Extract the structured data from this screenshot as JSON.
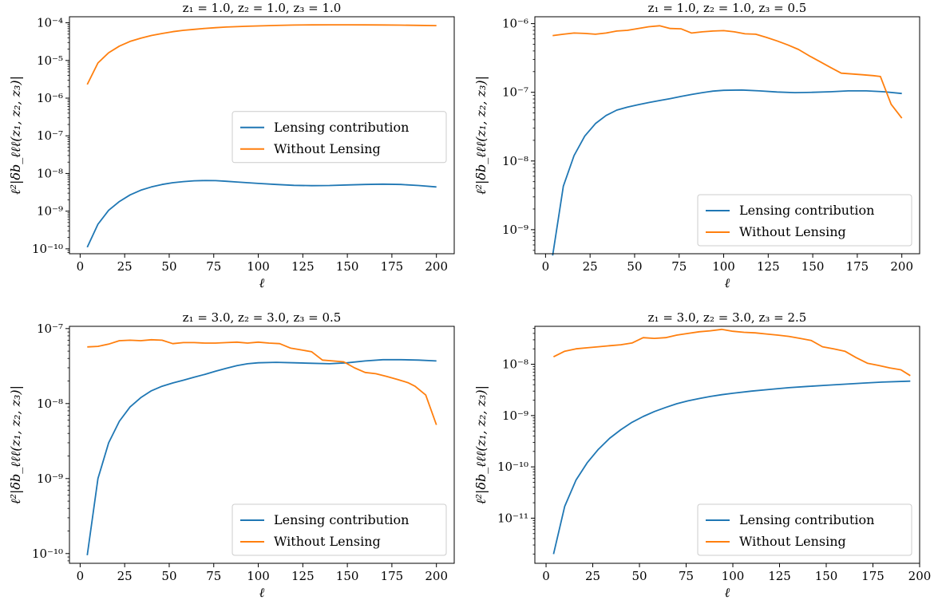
{
  "colors": {
    "lensing": "#1f77b4",
    "without": "#ff7f0e"
  },
  "chart_data": [
    {
      "type": "line",
      "title": "z₁ = 1.0, z₂ = 1.0, z₃ = 1.0",
      "xlabel": "ℓ",
      "ylabel": "ℓ²|δb_ℓℓℓ(z₁, z₂, z₃)|",
      "yscale": "log",
      "xlim": [
        -6,
        210
      ],
      "ylim_exp": [
        -10.13,
        -3.84
      ],
      "xticks": [
        0,
        25,
        50,
        75,
        100,
        125,
        150,
        175,
        200
      ],
      "yticks_exp": [
        -10,
        -9,
        -8,
        -7,
        -6,
        -5,
        -4
      ],
      "legend_position": "center-right",
      "series": [
        {
          "name": "Lensing contribution",
          "color_key": "lensing",
          "x": [
            4,
            10,
            16,
            22,
            28,
            34,
            40,
            46,
            52,
            58,
            64,
            70,
            76,
            82,
            88,
            94,
            100,
            110,
            120,
            130,
            140,
            150,
            160,
            170,
            180,
            190,
            200
          ],
          "y": [
            1.1e-10,
            4.5e-10,
            1.05e-09,
            1.8e-09,
            2.7e-09,
            3.6e-09,
            4.4e-09,
            5.1e-09,
            5.7e-09,
            6.1e-09,
            6.4e-09,
            6.5e-09,
            6.45e-09,
            6.2e-09,
            5.95e-09,
            5.7e-09,
            5.45e-09,
            5.1e-09,
            4.85e-09,
            4.75e-09,
            4.8e-09,
            4.95e-09,
            5.1e-09,
            5.2e-09,
            5.1e-09,
            4.8e-09,
            4.4e-09
          ]
        },
        {
          "name": "Without Lensing",
          "color_key": "without",
          "x": [
            4,
            10,
            16,
            22,
            28,
            34,
            40,
            46,
            52,
            58,
            64,
            70,
            76,
            82,
            88,
            94,
            100,
            110,
            120,
            130,
            140,
            150,
            160,
            170,
            180,
            190,
            200
          ],
          "y": [
            2.3e-06,
            8.6e-06,
            1.6e-05,
            2.4e-05,
            3.2e-05,
            3.9e-05,
            4.6e-05,
            5.2e-05,
            5.8e-05,
            6.3e-05,
            6.7e-05,
            7.1e-05,
            7.4e-05,
            7.7e-05,
            7.9e-05,
            8.1e-05,
            8.25e-05,
            8.5e-05,
            8.7e-05,
            8.8e-05,
            8.85e-05,
            8.85e-05,
            8.8e-05,
            8.75e-05,
            8.65e-05,
            8.55e-05,
            8.4e-05
          ]
        }
      ]
    },
    {
      "type": "line",
      "title": "z₁ = 1.0, z₂ = 1.0, z₃ = 0.5",
      "xlabel": "ℓ",
      "ylabel": "ℓ²|δb_ℓℓℓ(z₁, z₂, z₃)|",
      "yscale": "log",
      "xlim": [
        -6,
        210
      ],
      "ylim_exp": [
        -9.35,
        -5.9
      ],
      "xticks": [
        0,
        25,
        50,
        75,
        100,
        125,
        150,
        175,
        200
      ],
      "yticks_exp": [
        -9,
        -8,
        -7,
        -6
      ],
      "legend_position": "lower-right",
      "series": [
        {
          "name": "Lensing contribution",
          "color_key": "lensing",
          "x": [
            4,
            10,
            16,
            22,
            28,
            34,
            40,
            46,
            52,
            58,
            64,
            70,
            76,
            82,
            88,
            94,
            100,
            110,
            120,
            130,
            140,
            150,
            160,
            170,
            180,
            190,
            200
          ],
          "y": [
            4.2e-10,
            4.3e-09,
            1.2e-08,
            2.3e-08,
            3.5e-08,
            4.6e-08,
            5.5e-08,
            6.1e-08,
            6.6e-08,
            7.1e-08,
            7.6e-08,
            8.1e-08,
            8.7e-08,
            9.3e-08,
            9.9e-08,
            1.04e-07,
            1.07e-07,
            1.08e-07,
            1.05e-07,
            1.01e-07,
            9.9e-08,
            1e-07,
            1.02e-07,
            1.05e-07,
            1.05e-07,
            1.02e-07,
            9.6e-08
          ]
        },
        {
          "name": "Without Lensing",
          "color_key": "without",
          "x": [
            4,
            10,
            16,
            22,
            28,
            34,
            40,
            46,
            52,
            58,
            64,
            70,
            76,
            82,
            88,
            94,
            100,
            106,
            112,
            118,
            124,
            130,
            136,
            142,
            148,
            154,
            160,
            166,
            172,
            178,
            184,
            188,
            194,
            200
          ],
          "y": [
            6.7e-07,
            7e-07,
            7.3e-07,
            7.2e-07,
            7e-07,
            7.3e-07,
            7.8e-07,
            8e-07,
            8.5e-07,
            9e-07,
            9.3e-07,
            8.5e-07,
            8.4e-07,
            7.3e-07,
            7.6e-07,
            7.8e-07,
            7.9e-07,
            7.6e-07,
            7.1e-07,
            7e-07,
            6.3e-07,
            5.6e-07,
            4.9e-07,
            4.2e-07,
            3.4e-07,
            2.8e-07,
            2.3e-07,
            1.9e-07,
            1.85e-07,
            1.8e-07,
            1.75e-07,
            1.7e-07,
            6.7e-08,
            4.2e-08
          ]
        }
      ]
    },
    {
      "type": "line",
      "title": "z₁ = 3.0, z₂ = 3.0, z₃ = 0.5",
      "xlabel": "ℓ",
      "ylabel": "ℓ²|δb_ℓℓℓ(z₁, z₂, z₃)|",
      "yscale": "log",
      "xlim": [
        -6,
        210
      ],
      "ylim_exp": [
        -10.13,
        -6.97
      ],
      "xticks": [
        0,
        25,
        50,
        75,
        100,
        125,
        150,
        175,
        200
      ],
      "yticks_exp": [
        -10,
        -9,
        -8,
        -7
      ],
      "legend_position": "lower-right",
      "series": [
        {
          "name": "Lensing contribution",
          "color_key": "lensing",
          "x": [
            4,
            10,
            16,
            22,
            28,
            34,
            40,
            46,
            52,
            58,
            64,
            70,
            76,
            82,
            88,
            94,
            100,
            110,
            120,
            130,
            140,
            150,
            160,
            170,
            180,
            190,
            200
          ],
          "y": [
            9.5e-11,
            1e-09,
            3e-09,
            5.8e-09,
            9e-09,
            1.2e-08,
            1.48e-08,
            1.7e-08,
            1.88e-08,
            2.05e-08,
            2.25e-08,
            2.45e-08,
            2.7e-08,
            2.95e-08,
            3.2e-08,
            3.4e-08,
            3.5e-08,
            3.55e-08,
            3.5e-08,
            3.45e-08,
            3.4e-08,
            3.5e-08,
            3.7e-08,
            3.85e-08,
            3.85e-08,
            3.8e-08,
            3.7e-08
          ]
        },
        {
          "name": "Without Lensing",
          "color_key": "without",
          "x": [
            4,
            10,
            16,
            22,
            28,
            34,
            40,
            46,
            52,
            58,
            64,
            70,
            76,
            82,
            88,
            94,
            100,
            106,
            112,
            118,
            124,
            130,
            136,
            142,
            148,
            154,
            160,
            166,
            172,
            178,
            184,
            188,
            194,
            200
          ],
          "y": [
            5.7e-08,
            5.8e-08,
            6.2e-08,
            6.9e-08,
            7e-08,
            6.9e-08,
            7.1e-08,
            7e-08,
            6.3e-08,
            6.5e-08,
            6.5e-08,
            6.4e-08,
            6.4e-08,
            6.5e-08,
            6.6e-08,
            6.4e-08,
            6.6e-08,
            6.4e-08,
            6.3e-08,
            5.5e-08,
            5.2e-08,
            4.9e-08,
            3.8e-08,
            3.7e-08,
            3.6e-08,
            3e-08,
            2.6e-08,
            2.5e-08,
            2.3e-08,
            2.1e-08,
            1.9e-08,
            1.7e-08,
            1.3e-08,
            5.2e-09
          ]
        }
      ]
    },
    {
      "type": "line",
      "title": "z₁ = 3.0, z₂ = 3.0, z₃ = 2.5",
      "xlabel": "ℓ",
      "ylabel": "ℓ²|δb_ℓℓℓ(z₁, z₂, z₃)|",
      "yscale": "log",
      "xlim": [
        -6,
        200
      ],
      "ylim_exp": [
        -11.88,
        -7.26
      ],
      "xticks": [
        0,
        25,
        50,
        75,
        100,
        125,
        150,
        175,
        200
      ],
      "yticks_exp": [
        -11,
        -10,
        -9,
        -8
      ],
      "legend_position": "lower-right",
      "series": [
        {
          "name": "Lensing contribution",
          "color_key": "lensing",
          "x": [
            4,
            10,
            16,
            22,
            28,
            34,
            40,
            46,
            52,
            58,
            64,
            70,
            76,
            82,
            88,
            94,
            100,
            110,
            120,
            130,
            140,
            150,
            160,
            170,
            180,
            195
          ],
          "y": [
            2e-12,
            1.7e-11,
            5.5e-11,
            1.2e-10,
            2.2e-10,
            3.6e-10,
            5.3e-10,
            7.4e-10,
            9.6e-10,
            1.2e-09,
            1.44e-09,
            1.7e-09,
            1.94e-09,
            2.15e-09,
            2.36e-09,
            2.55e-09,
            2.72e-09,
            3e-09,
            3.25e-09,
            3.5e-09,
            3.7e-09,
            3.9e-09,
            4.1e-09,
            4.3e-09,
            4.5e-09,
            4.7e-09
          ]
        },
        {
          "name": "Without Lensing",
          "color_key": "without",
          "x": [
            4,
            10,
            16,
            22,
            28,
            34,
            40,
            46,
            52,
            58,
            64,
            70,
            76,
            82,
            88,
            94,
            100,
            106,
            112,
            118,
            124,
            130,
            136,
            142,
            148,
            154,
            160,
            166,
            172,
            178,
            184,
            190,
            195
          ],
          "y": [
            1.4e-08,
            1.8e-08,
            2e-08,
            2.1e-08,
            2.2e-08,
            2.3e-08,
            2.4e-08,
            2.6e-08,
            3.3e-08,
            3.2e-08,
            3.3e-08,
            3.7e-08,
            4e-08,
            4.3e-08,
            4.5e-08,
            4.8e-08,
            4.4e-08,
            4.2e-08,
            4.1e-08,
            3.9e-08,
            3.7e-08,
            3.5e-08,
            3.2e-08,
            2.9e-08,
            2.2e-08,
            2e-08,
            1.8e-08,
            1.35e-08,
            1.05e-08,
            9.5e-09,
            8.5e-09,
            7.8e-09,
            6e-09
          ]
        }
      ]
    }
  ]
}
